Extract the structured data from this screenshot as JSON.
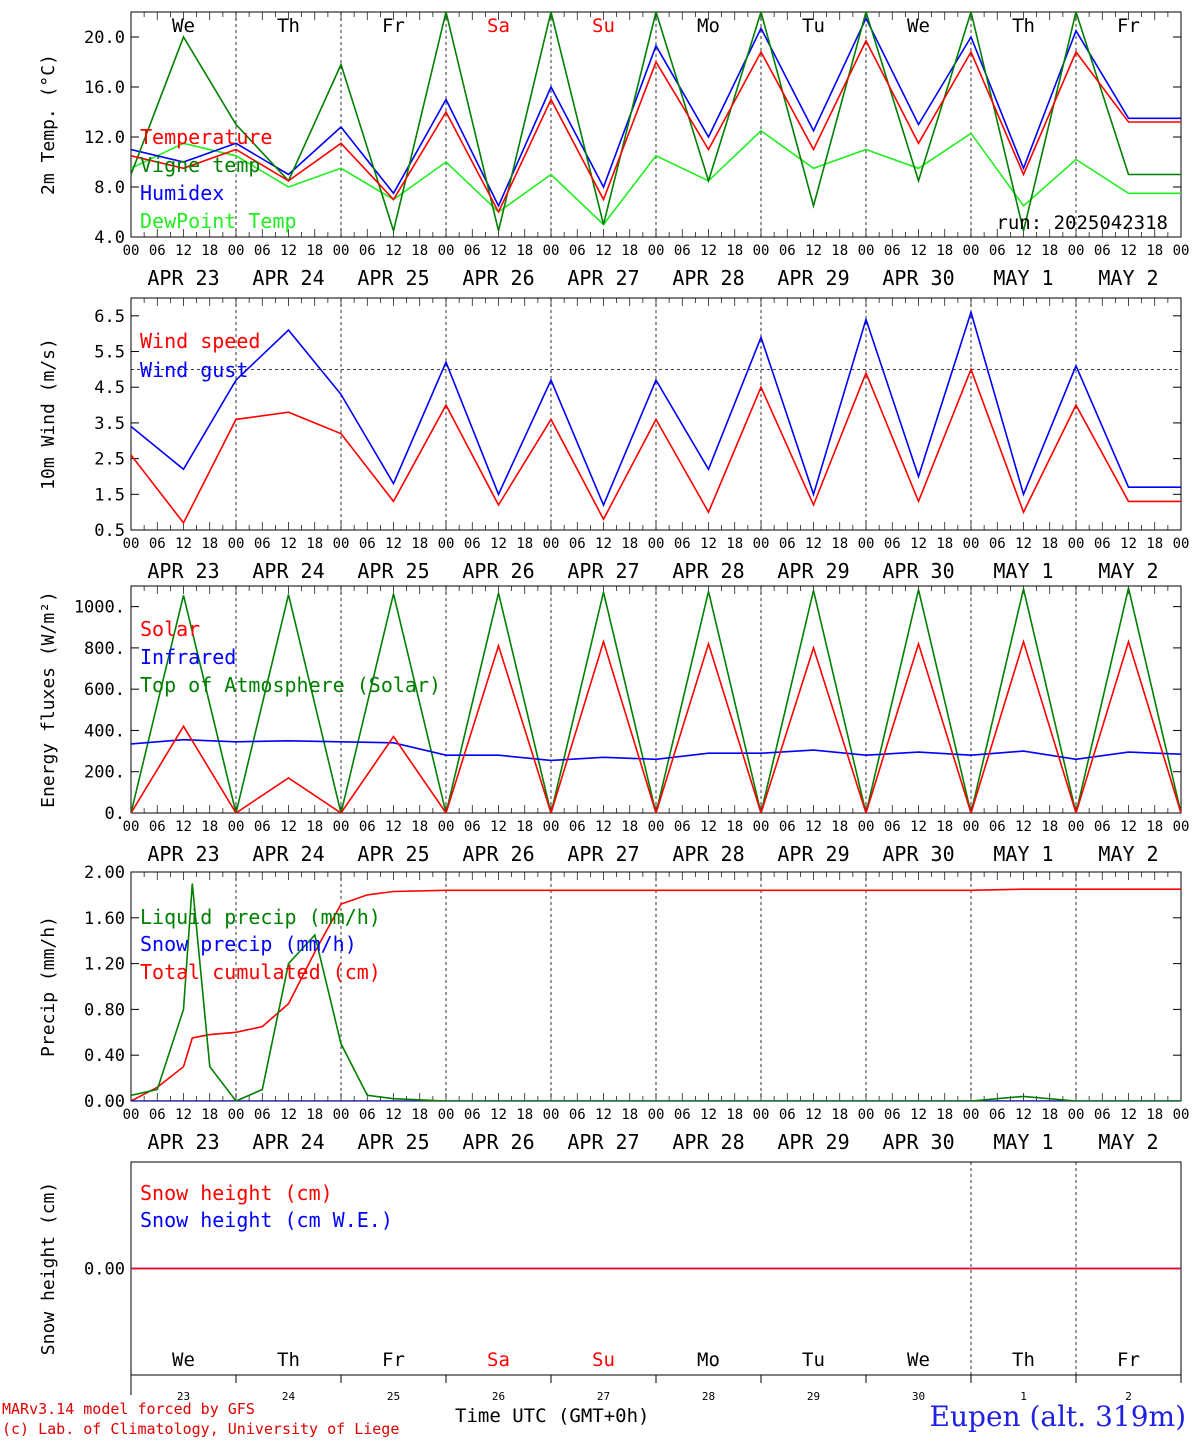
{
  "chart_data": [
    {
      "type": "line",
      "ylabel": "2m Temp. (°C)",
      "ylim": [
        4.0,
        22.0
      ],
      "yticks": [
        "4.0",
        "8.0",
        "12.0",
        "16.0",
        "20.0"
      ],
      "annotation": "run: 2025042318",
      "x": [
        0,
        12,
        24,
        36,
        48,
        60,
        72,
        84,
        96,
        108,
        120,
        132,
        144,
        156,
        168,
        180,
        192,
        204,
        216,
        228,
        240
      ],
      "series": [
        {
          "name": "Temperature",
          "color": "#ff0000",
          "values": [
            10.5,
            9.5,
            11.0,
            8.5,
            11.5,
            7.0,
            14.0,
            6.0,
            15.0,
            7.0,
            18.0,
            11.0,
            18.8,
            11.0,
            19.7,
            11.5,
            18.8,
            9.0,
            18.8,
            13.2,
            13.2
          ]
        },
        {
          "name": "Vigne temp",
          "color": "#008000",
          "values": [
            9.0,
            20.0,
            13.0,
            8.5,
            17.8,
            4.5,
            22.0,
            4.5,
            22.0,
            5.0,
            22.0,
            8.5,
            22.0,
            6.5,
            22.0,
            8.5,
            22.0,
            4.5,
            22.0,
            9.0,
            9.0
          ]
        },
        {
          "name": "Humidex",
          "color": "#0000ff",
          "values": [
            11.0,
            10.0,
            11.5,
            9.0,
            12.8,
            7.5,
            15.0,
            6.5,
            16.0,
            8.0,
            19.3,
            12.0,
            20.7,
            12.5,
            21.5,
            13.0,
            20.0,
            9.5,
            20.5,
            13.5,
            13.5
          ]
        },
        {
          "name": "DewPoint Temp",
          "color": "#22ee22",
          "values": [
            9.5,
            11.5,
            10.5,
            8.0,
            9.5,
            7.0,
            10.0,
            6.0,
            9.0,
            5.0,
            10.5,
            8.5,
            12.5,
            9.5,
            11.0,
            9.5,
            12.3,
            6.5,
            10.2,
            7.5,
            7.5
          ]
        }
      ]
    },
    {
      "type": "line",
      "ylabel": "10m Wind (m/s)",
      "ylim": [
        0.5,
        7.0
      ],
      "yticks": [
        "0.5",
        "1.5",
        "2.5",
        "3.5",
        "4.5",
        "5.5",
        "6.5"
      ],
      "reference_line": 5.0,
      "x": [
        0,
        12,
        24,
        36,
        48,
        60,
        72,
        84,
        96,
        108,
        120,
        132,
        144,
        156,
        168,
        180,
        192,
        204,
        216,
        228,
        240
      ],
      "series": [
        {
          "name": "Wind speed",
          "color": "#ff0000",
          "values": [
            2.6,
            0.7,
            3.6,
            3.8,
            3.2,
            1.3,
            4.0,
            1.2,
            3.6,
            0.8,
            3.6,
            1.0,
            4.5,
            1.2,
            4.9,
            1.3,
            5.0,
            1.0,
            4.0,
            1.3,
            1.3
          ]
        },
        {
          "name": "Wind gust",
          "color": "#0000ff",
          "values": [
            3.4,
            2.2,
            4.7,
            6.1,
            4.3,
            1.8,
            5.2,
            1.5,
            4.7,
            1.2,
            4.7,
            2.2,
            5.9,
            1.5,
            6.4,
            2.0,
            6.6,
            1.5,
            5.1,
            1.7,
            1.7
          ]
        }
      ]
    },
    {
      "type": "line",
      "ylabel": "Energy fluxes (W/m²)",
      "ylim": [
        0,
        1100
      ],
      "yticks": [
        "0.",
        "200.",
        "400.",
        "600.",
        "800.",
        "1000."
      ],
      "x": [
        0,
        12,
        24,
        36,
        48,
        60,
        72,
        84,
        96,
        108,
        120,
        132,
        144,
        156,
        168,
        180,
        192,
        204,
        216,
        228,
        240
      ],
      "series": [
        {
          "name": "Solar",
          "color": "#ff0000",
          "values": [
            0,
            420,
            0,
            170,
            0,
            370,
            0,
            810,
            0,
            830,
            0,
            820,
            0,
            800,
            0,
            820,
            0,
            830,
            0,
            830,
            0
          ]
        },
        {
          "name": "Infrared",
          "color": "#0000ff",
          "values": [
            335,
            355,
            345,
            350,
            345,
            340,
            280,
            280,
            255,
            270,
            260,
            290,
            290,
            305,
            280,
            295,
            280,
            300,
            260,
            295,
            285
          ]
        },
        {
          "name": "Top of Atmosphere (Solar)",
          "color": "#008000",
          "values": [
            0,
            1055,
            0,
            1058,
            0,
            1062,
            0,
            1066,
            0,
            1070,
            0,
            1074,
            0,
            1078,
            0,
            1082,
            0,
            1086,
            0,
            1090,
            0
          ]
        }
      ]
    },
    {
      "type": "line",
      "ylabel": "Precip (mm/h)",
      "ylim": [
        0.0,
        2.0
      ],
      "yticks": [
        "0.00",
        "0.40",
        "0.80",
        "1.20",
        "1.60",
        "2.00"
      ],
      "x": [
        0,
        6,
        12,
        14,
        18,
        24,
        30,
        36,
        42,
        48,
        54,
        60,
        72,
        96,
        120,
        144,
        168,
        192,
        204,
        216,
        240
      ],
      "series": [
        {
          "name": "Liquid precip (mm/h)",
          "color": "#008000",
          "values": [
            0.05,
            0.1,
            0.8,
            1.9,
            0.3,
            0.0,
            0.1,
            1.2,
            1.45,
            0.5,
            0.05,
            0.02,
            0.0,
            0.0,
            0.0,
            0.0,
            0.0,
            0.0,
            0.04,
            0.0,
            0.0
          ]
        },
        {
          "name": "Snow precip (mm/h)",
          "color": "#0000ff",
          "values": [
            0.0,
            0.0,
            0.0,
            0.0,
            0.0,
            0.0,
            0.0,
            0.0,
            0.0,
            0.0,
            0.0,
            0.0,
            0.0,
            0.0,
            0.0,
            0.0,
            0.0,
            0.0,
            0.0,
            0.0,
            0.0
          ]
        },
        {
          "name": "Total cumulated (cm)",
          "color": "#ff0000",
          "values": [
            0.0,
            0.12,
            0.3,
            0.55,
            0.58,
            0.6,
            0.65,
            0.85,
            1.3,
            1.72,
            1.8,
            1.83,
            1.84,
            1.84,
            1.84,
            1.84,
            1.84,
            1.84,
            1.85,
            1.85,
            1.85
          ]
        }
      ]
    },
    {
      "type": "line",
      "ylabel": "Snow height (cm)",
      "ylim": [
        -1.0,
        1.0
      ],
      "yticks": [
        "0.00"
      ],
      "xlabel": "Time UTC (GMT+0h)",
      "x": [
        0,
        240
      ],
      "series": [
        {
          "name": "Snow height (cm)",
          "color": "#ff0000",
          "values": [
            0.0,
            0.0
          ]
        },
        {
          "name": "Snow height (cm W.E.)",
          "color": "#0000ff",
          "values": [
            0.0,
            0.0
          ]
        }
      ]
    }
  ],
  "days": [
    {
      "weekday": "We",
      "date": "APR 23",
      "num": "23",
      "weekend": false
    },
    {
      "weekday": "Th",
      "date": "APR 24",
      "num": "24",
      "weekend": false
    },
    {
      "weekday": "Fr",
      "date": "APR 25",
      "num": "25",
      "weekend": false
    },
    {
      "weekday": "Sa",
      "date": "APR 26",
      "num": "26",
      "weekend": true
    },
    {
      "weekday": "Su",
      "date": "APR 27",
      "num": "27",
      "weekend": true
    },
    {
      "weekday": "Mo",
      "date": "APR 28",
      "num": "28",
      "weekend": false
    },
    {
      "weekday": "Tu",
      "date": "APR 29",
      "num": "29",
      "weekend": false
    },
    {
      "weekday": "We",
      "date": "APR 30",
      "num": "30",
      "weekend": false
    },
    {
      "weekday": "Th",
      "date": "MAY  1",
      "num": "1",
      "weekend": false
    },
    {
      "weekday": "Fr",
      "date": "MAY  2",
      "num": "2",
      "weekend": false
    }
  ],
  "hour_labels": [
    "00",
    "06",
    "12",
    "18"
  ],
  "footer": {
    "credit_line1": "MARv3.14 model forced by GFS",
    "credit_line2": "(c) Lab. of Climatology, University of Liege",
    "station": "Eupen (alt. 319m)",
    "xaxis_title": "Time UTC (GMT+0h)"
  },
  "colors": {
    "weekend": "#ff0000",
    "weekday": "#000000"
  }
}
